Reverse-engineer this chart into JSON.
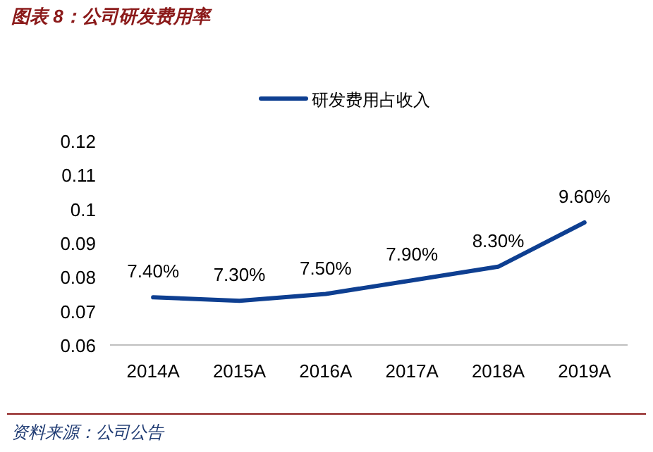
{
  "chart_data": {
    "type": "line",
    "title": "图表 8：公司研发费用率",
    "annotations": [
      "资料来源：公司公告"
    ],
    "categories": [
      "2014A",
      "2015A",
      "2016A",
      "2017A",
      "2018A",
      "2019A"
    ],
    "series": [
      {
        "name": "研发费用占收入",
        "color": "#0e3f91",
        "values": [
          0.074,
          0.073,
          0.075,
          0.079,
          0.083,
          0.096
        ],
        "value_labels": [
          "7.40%",
          "7.30%",
          "7.50%",
          "7.90%",
          "8.30%",
          "9.60%"
        ]
      }
    ],
    "ylim": [
      0.06,
      0.12
    ],
    "yticks": [
      0.06,
      0.07,
      0.08,
      0.09,
      0.1,
      0.11,
      0.12
    ],
    "legend": "top",
    "grid": false
  }
}
